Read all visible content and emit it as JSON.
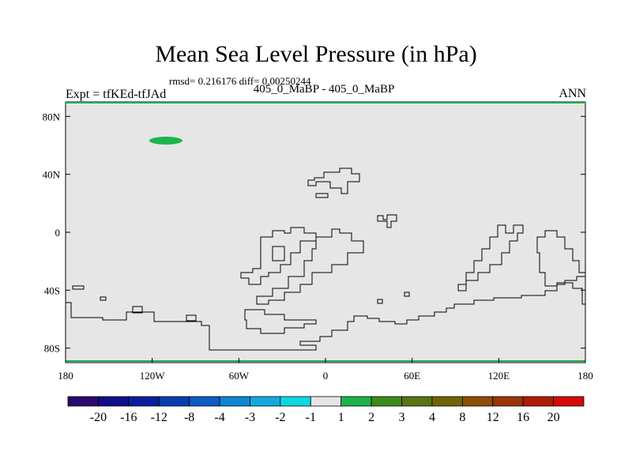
{
  "title": "Mean Sea Level Pressure (in hPa)",
  "stats_text": "rmsd= 0.216176 diff= 0.00250244",
  "left_label": "Expt = tfKEd-tfJAd",
  "center_label": "405_0_MaBP - 405_0_MaBP",
  "right_label": "ANN",
  "map": {
    "fill_color": "#e6e6e6",
    "anomaly_color": "#1db34a",
    "coastline_color": "#000000",
    "lat_labels": [
      {
        "text": "80N",
        "lat": 80
      },
      {
        "text": "40N",
        "lat": 40
      },
      {
        "text": "0",
        "lat": 0
      },
      {
        "text": "40S",
        "lat": -40
      },
      {
        "text": "80S",
        "lat": -80
      }
    ],
    "lon_labels": [
      {
        "text": "180",
        "lon": -180
      },
      {
        "text": "120W",
        "lon": -120
      },
      {
        "text": "60W",
        "lon": -60
      },
      {
        "text": "0",
        "lon": 0
      },
      {
        "text": "60E",
        "lon": 60
      },
      {
        "text": "120E",
        "lon": 120
      },
      {
        "text": "180",
        "lon": 180
      }
    ]
  },
  "colorbar": {
    "colors": [
      "#2a0a6e",
      "#0f0f8a",
      "#0b1f9e",
      "#0a3cb0",
      "#0b5cc4",
      "#0e86d2",
      "#13a9e0",
      "#0fd8e0",
      "#e6e6e6",
      "#1db34a",
      "#3e8a1c",
      "#5a7412",
      "#6f6508",
      "#8c4f06",
      "#9a3408",
      "#b01b06",
      "#d40a08"
    ],
    "labels": [
      "-20",
      "-16",
      "-12",
      "-8",
      "-4",
      "-3",
      "-2",
      "-1",
      "1",
      "2",
      "3",
      "4",
      "8",
      "12",
      "16",
      "20"
    ]
  }
}
